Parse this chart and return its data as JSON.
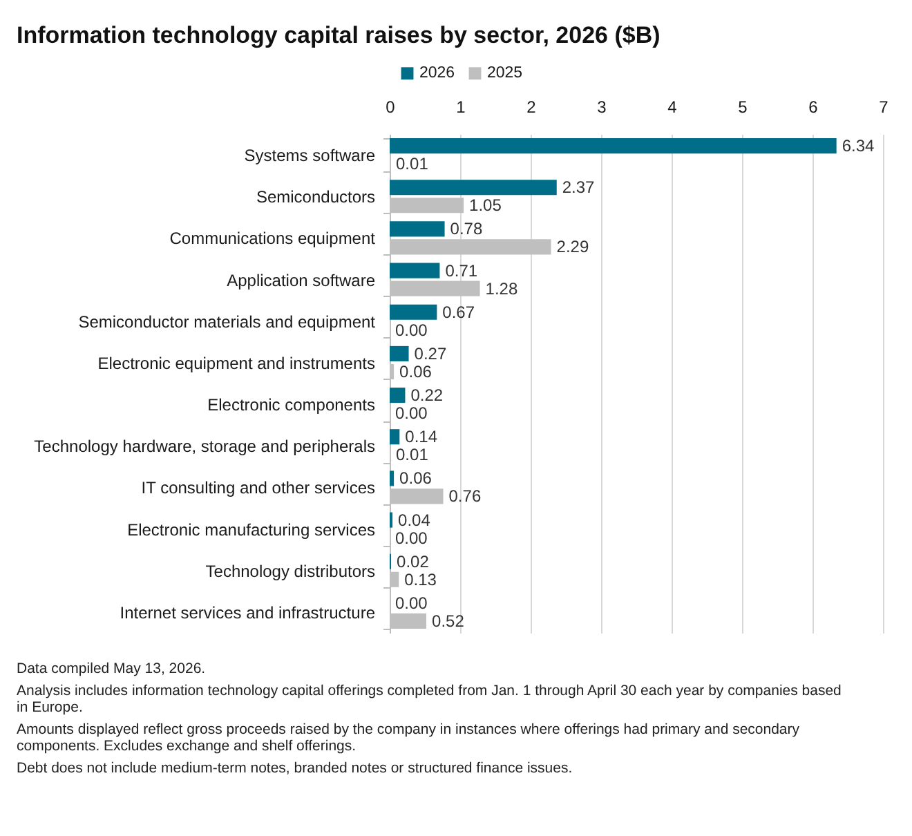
{
  "chart_data": {
    "type": "bar",
    "orientation": "horizontal",
    "title": "Information technology capital raises by sector, 2026 ($B)",
    "categories": [
      "Systems software",
      "Semiconductors",
      "Communications equipment",
      "Application software",
      "Semiconductor materials and equipment",
      "Electronic equipment and instruments",
      "Electronic components",
      "Technology hardware, storage and peripherals",
      "IT consulting and other services",
      "Electronic manufacturing services",
      "Technology distributors",
      "Internet services and infrastructure"
    ],
    "series": [
      {
        "name": "2026",
        "color": "#006e88",
        "values": [
          6.34,
          2.37,
          0.78,
          0.71,
          0.67,
          0.27,
          0.22,
          0.14,
          0.06,
          0.04,
          0.02,
          0
        ],
        "value_labels": [
          "6.34",
          "2.37",
          "0.78",
          "0.71",
          "0.67",
          "0.27",
          "0.22",
          "0.14",
          "0.06",
          "0.04",
          "0.02",
          "0.00"
        ]
      },
      {
        "name": "2025",
        "color": "#bfbfbf",
        "values": [
          0.01,
          1.05,
          2.29,
          1.28,
          0,
          0.06,
          0,
          0.01,
          0.76,
          0,
          0.13,
          0.52
        ],
        "value_labels": [
          "0.01",
          "1.05",
          "2.29",
          "1.28",
          "0.00",
          "0.06",
          "0.00",
          "0.01",
          "0.76",
          "0.00",
          "0.13",
          "0.52"
        ]
      }
    ],
    "xlim": [
      0,
      7
    ],
    "xticks": [
      0,
      1,
      2,
      3,
      4,
      5,
      6,
      7
    ],
    "grid": "x",
    "legend": "top",
    "annotations": [
      "Data compiled May 13, 2026.",
      "Analysis includes information technology capital offerings completed from Jan. 1 through April 30 each year by companies based in Europe.",
      "Amounts displayed reflect gross proceeds raised by the company in instances where offerings had primary and secondary components. Excludes exchange and shelf offerings.",
      "Debt does not include medium-term notes, branded notes or structured finance issues."
    ]
  }
}
